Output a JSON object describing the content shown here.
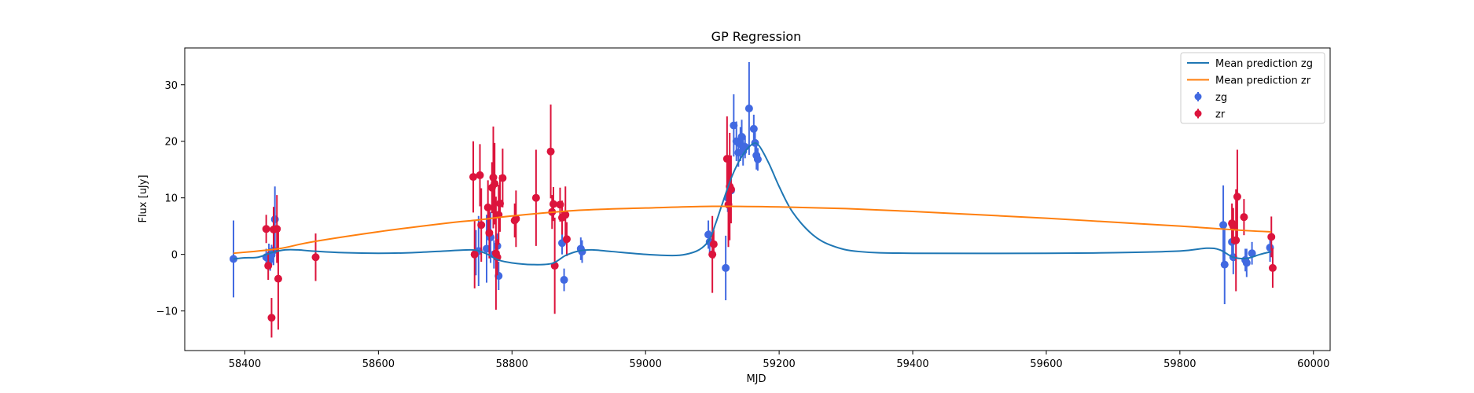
{
  "chart_data": {
    "type": "scatter",
    "title": "GP Regression",
    "xlabel": "MJD",
    "ylabel": "Flux [uJy]",
    "xlim": [
      58310,
      60025
    ],
    "ylim": [
      -17,
      36.5
    ],
    "xticks": [
      58400,
      58600,
      58800,
      59000,
      59200,
      59400,
      59600,
      59800,
      60000
    ],
    "yticks": [
      -10,
      0,
      10,
      20,
      30
    ],
    "grid": false,
    "legend_position": "upper-right",
    "legend": [
      {
        "label": "Mean prediction zg",
        "kind": "line",
        "color": "#1f77b4"
      },
      {
        "label": "Mean prediction zr",
        "kind": "line",
        "color": "#ff7f0e"
      },
      {
        "label": "zg",
        "kind": "errorbar",
        "color": "#4169e1"
      },
      {
        "label": "zr",
        "kind": "errorbar",
        "color": "#dc143c"
      }
    ],
    "lines": [
      {
        "name": "Mean prediction zg",
        "color": "#1f77b4",
        "points": [
          [
            58383,
            -0.8
          ],
          [
            58400,
            -0.6
          ],
          [
            58420,
            -0.5
          ],
          [
            58440,
            0.3
          ],
          [
            58460,
            0.8
          ],
          [
            58480,
            0.8
          ],
          [
            58500,
            0.6
          ],
          [
            58550,
            0.3
          ],
          [
            58600,
            0.2
          ],
          [
            58650,
            0.3
          ],
          [
            58700,
            0.6
          ],
          [
            58740,
            0.8
          ],
          [
            58760,
            0.2
          ],
          [
            58780,
            -1.0
          ],
          [
            58800,
            -1.5
          ],
          [
            58830,
            -1.8
          ],
          [
            58860,
            -1.6
          ],
          [
            58880,
            -0.2
          ],
          [
            58900,
            0.6
          ],
          [
            58920,
            0.8
          ],
          [
            58950,
            0.5
          ],
          [
            59000,
            0.0
          ],
          [
            59040,
            -0.2
          ],
          [
            59060,
            0.0
          ],
          [
            59080,
            0.8
          ],
          [
            59095,
            2.5
          ],
          [
            59105,
            5.5
          ],
          [
            59115,
            9.0
          ],
          [
            59130,
            14.0
          ],
          [
            59145,
            17.5
          ],
          [
            59160,
            19.5
          ],
          [
            59170,
            19.2
          ],
          [
            59185,
            16.0
          ],
          [
            59200,
            12.0
          ],
          [
            59220,
            7.5
          ],
          [
            59250,
            3.5
          ],
          [
            59280,
            1.5
          ],
          [
            59320,
            0.5
          ],
          [
            59400,
            0.2
          ],
          [
            59600,
            0.2
          ],
          [
            59700,
            0.3
          ],
          [
            59800,
            0.6
          ],
          [
            59840,
            1.1
          ],
          [
            59860,
            0.8
          ],
          [
            59880,
            -0.5
          ],
          [
            59900,
            -0.7
          ],
          [
            59920,
            0.0
          ],
          [
            59937,
            0.5
          ]
        ]
      },
      {
        "name": "Mean prediction zr",
        "color": "#ff7f0e",
        "points": [
          [
            58383,
            0.2
          ],
          [
            58450,
            1.0
          ],
          [
            58500,
            2.2
          ],
          [
            58600,
            4.0
          ],
          [
            58700,
            5.5
          ],
          [
            58750,
            6.1
          ],
          [
            58800,
            6.8
          ],
          [
            58900,
            7.8
          ],
          [
            59000,
            8.2
          ],
          [
            59100,
            8.5
          ],
          [
            59200,
            8.4
          ],
          [
            59300,
            8.1
          ],
          [
            59400,
            7.6
          ],
          [
            59500,
            7.0
          ],
          [
            59600,
            6.4
          ],
          [
            59700,
            5.7
          ],
          [
            59800,
            5.0
          ],
          [
            59900,
            4.2
          ],
          [
            59937,
            4.0
          ]
        ]
      }
    ],
    "series": [
      {
        "name": "zg",
        "color": "#4169e1",
        "points": [
          [
            58383,
            -0.8,
            6.8
          ],
          [
            58432,
            -0.5,
            1.5
          ],
          [
            58436,
            -0.3,
            2.2
          ],
          [
            58438,
            -0.9,
            2.0
          ],
          [
            58440,
            -0.1,
            1.8
          ],
          [
            58443,
            0.7,
            2.6
          ],
          [
            58445,
            6.2,
            5.8
          ],
          [
            58746,
            0.3,
            4.0
          ],
          [
            58750,
            0.6,
            6.2
          ],
          [
            58762,
            1.0,
            6.0
          ],
          [
            58768,
            3.0,
            4.5
          ],
          [
            58773,
            0.0,
            2.5
          ],
          [
            58778,
            1.5,
            2.2
          ],
          [
            58780,
            -3.8,
            2.5
          ],
          [
            58875,
            2.0,
            2.0
          ],
          [
            58878,
            -4.5,
            2.0
          ],
          [
            58903,
            1.0,
            2.0
          ],
          [
            58905,
            0.5,
            2.0
          ],
          [
            59094,
            3.5,
            2.5
          ],
          [
            59096,
            2.2,
            2.0
          ],
          [
            59120,
            -2.4,
            5.7
          ],
          [
            59123,
            10.0,
            2.5
          ],
          [
            59128,
            11.3,
            2.5
          ],
          [
            59132,
            22.8,
            5.5
          ],
          [
            59136,
            20.0,
            3.5
          ],
          [
            59139,
            18.0,
            2.5
          ],
          [
            59142,
            19.5,
            3.0
          ],
          [
            59144,
            20.8,
            3.0
          ],
          [
            59146,
            18.2,
            2.5
          ],
          [
            59149,
            19.0,
            2.0
          ],
          [
            59155,
            25.8,
            8.2
          ],
          [
            59162,
            22.2,
            2.5
          ],
          [
            59164,
            19.7,
            2.5
          ],
          [
            59166,
            17.5,
            2.5
          ],
          [
            59168,
            16.8,
            2.0
          ],
          [
            59865,
            5.2,
            7.0
          ],
          [
            59867,
            -1.8,
            7.0
          ],
          [
            59878,
            2.2,
            2.5
          ],
          [
            59880,
            -0.5,
            3.0
          ],
          [
            59898,
            -1.0,
            2.0
          ],
          [
            59900,
            -1.5,
            2.5
          ],
          [
            59908,
            0.2,
            2.0
          ],
          [
            59935,
            1.2,
            2.5
          ]
        ]
      },
      {
        "name": "zr",
        "color": "#dc143c",
        "points": [
          [
            58432,
            4.5,
            2.5
          ],
          [
            58435,
            -2.0,
            2.5
          ],
          [
            58440,
            -11.2,
            3.5
          ],
          [
            58443,
            4.4,
            4.0
          ],
          [
            58448,
            4.5,
            6.0
          ],
          [
            58450,
            -4.3,
            9.0
          ],
          [
            58506,
            -0.5,
            4.2
          ],
          [
            58742,
            13.7,
            6.3
          ],
          [
            58744,
            0.0,
            6.0
          ],
          [
            58752,
            14.0,
            5.5
          ],
          [
            58754,
            5.2,
            6.5
          ],
          [
            58764,
            8.3,
            4.8
          ],
          [
            58766,
            3.8,
            4.5
          ],
          [
            58770,
            11.8,
            4.5
          ],
          [
            58772,
            13.6,
            9.0
          ],
          [
            58774,
            12.5,
            7.2
          ],
          [
            58776,
            0.2,
            10.0
          ],
          [
            58778,
            -0.5,
            3.2
          ],
          [
            58780,
            7.0,
            5.3
          ],
          [
            58782,
            9.0,
            5.0
          ],
          [
            58786,
            13.5,
            5.2
          ],
          [
            58804,
            6.0,
            3.0
          ],
          [
            58806,
            6.3,
            5.0
          ],
          [
            58836,
            10.0,
            8.5
          ],
          [
            58858,
            18.2,
            8.3
          ],
          [
            58860,
            7.5,
            3.0
          ],
          [
            58862,
            8.9,
            3.0
          ],
          [
            58864,
            -2.0,
            8.5
          ],
          [
            58872,
            8.8,
            3.0
          ],
          [
            58875,
            6.5,
            3.0
          ],
          [
            58880,
            7.0,
            5.0
          ],
          [
            58882,
            2.7,
            3.0
          ],
          [
            59100,
            0.0,
            6.8
          ],
          [
            59102,
            1.8,
            2.5
          ],
          [
            59122,
            16.9,
            7.5
          ],
          [
            59124,
            8.8,
            7.5
          ],
          [
            59126,
            12.0,
            9.5
          ],
          [
            59128,
            11.5,
            6.0
          ],
          [
            59878,
            5.5,
            3.5
          ],
          [
            59880,
            5.0,
            3.2
          ],
          [
            59884,
            2.5,
            9.0
          ],
          [
            59886,
            10.2,
            8.3
          ],
          [
            59896,
            6.6,
            3.2
          ],
          [
            59937,
            3.1,
            3.6
          ],
          [
            59939,
            -2.4,
            3.5
          ]
        ]
      }
    ]
  }
}
